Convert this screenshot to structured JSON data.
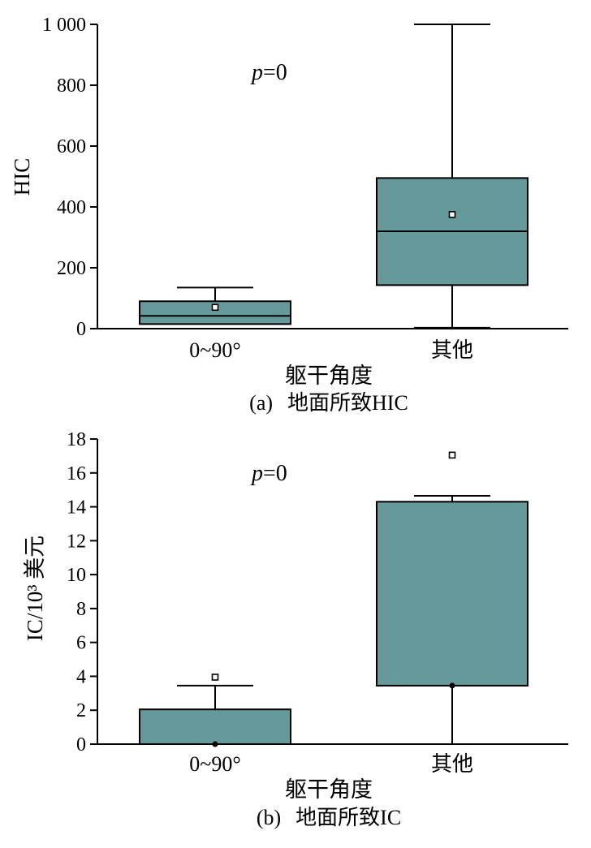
{
  "chart_data": [
    {
      "type": "box",
      "caption_letter": "(a)",
      "caption_text": "地面所致HIC",
      "annotation_label": "p",
      "annotation_rest": "=0",
      "xlabel": "躯干角度",
      "ylabel": "HIC",
      "ylim": [
        0,
        1000
      ],
      "yticks": [
        0,
        200,
        400,
        600,
        800,
        1000
      ],
      "ytick_labels": [
        "0",
        "200",
        "400",
        "600",
        "800",
        "1 000"
      ],
      "box_color": "#669999",
      "categories": [
        "0~90°",
        "其他"
      ],
      "boxes": [
        {
          "whisker_low": 15,
          "q1": 15,
          "median": 42,
          "q3": 90,
          "whisker_high": 135,
          "mean": 70
        },
        {
          "whisker_low": 3,
          "q1": 143,
          "median": 320,
          "q3": 495,
          "whisker_high": 1000,
          "mean": 375
        }
      ]
    },
    {
      "type": "box",
      "caption_letter": "(b)",
      "caption_text": "地面所致IC",
      "annotation_label": "p",
      "annotation_rest": "=0",
      "xlabel": "躯干角度",
      "ylabel": "IC/10³ 美元",
      "ylim": [
        0,
        18
      ],
      "yticks": [
        0,
        2,
        4,
        6,
        8,
        10,
        12,
        14,
        16,
        18
      ],
      "ytick_labels": [
        "0",
        "2",
        "4",
        "6",
        "8",
        "10",
        "12",
        "14",
        "16",
        "18"
      ],
      "box_color": "#669999",
      "categories": [
        "0~90°",
        "其他"
      ],
      "boxes": [
        {
          "whisker_low": 0,
          "q1": 0,
          "median": 0,
          "q3": 2.05,
          "whisker_high": 3.45,
          "mean": 3.95
        },
        {
          "whisker_low": 0,
          "q1": 3.45,
          "median": 3.45,
          "q3": 14.3,
          "whisker_high": 14.65,
          "mean": 17.05
        }
      ]
    }
  ]
}
